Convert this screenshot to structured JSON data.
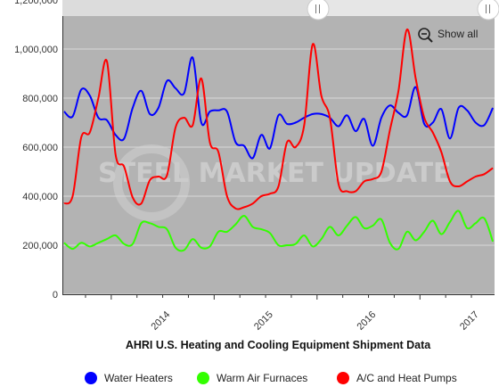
{
  "chart_data": {
    "type": "line",
    "title": "AHRI U.S. Heating and Cooling Equipment Shipment Data",
    "ylim": [
      0,
      1200000
    ],
    "y_ticks": [
      "0",
      "200,000",
      "400,000",
      "600,000",
      "800,000",
      "1,000,000",
      "1,200,000"
    ],
    "x_ticks": [
      "2014",
      "2015",
      "2016",
      "2017"
    ],
    "grid": true,
    "legend_position": "bottom",
    "show_all_label": "Show all",
    "watermark": "STEEL MARKET UPDATE",
    "x": [
      "2013-07",
      "2013-08",
      "2013-09",
      "2013-10",
      "2013-11",
      "2013-12",
      "2014-01",
      "2014-02",
      "2014-03",
      "2014-04",
      "2014-05",
      "2014-06",
      "2014-07",
      "2014-08",
      "2014-09",
      "2014-10",
      "2014-11",
      "2014-12",
      "2015-01",
      "2015-02",
      "2015-03",
      "2015-04",
      "2015-05",
      "2015-06",
      "2015-07",
      "2015-08",
      "2015-09",
      "2015-10",
      "2015-11",
      "2015-12",
      "2016-01",
      "2016-02",
      "2016-03",
      "2016-04",
      "2016-05",
      "2016-06",
      "2016-07",
      "2016-08",
      "2016-09",
      "2016-10",
      "2016-11",
      "2016-12",
      "2017-01",
      "2017-02",
      "2017-03",
      "2017-04",
      "2017-05",
      "2017-06",
      "2017-07",
      "2017-08",
      "2017-09"
    ],
    "series": [
      {
        "name": "Water Heaters",
        "color": "#0000ff",
        "values": [
          745000,
          725000,
          835000,
          810000,
          720000,
          710000,
          650000,
          635000,
          760000,
          830000,
          735000,
          760000,
          870000,
          840000,
          820000,
          965000,
          700000,
          745000,
          750000,
          745000,
          620000,
          605000,
          555000,
          650000,
          595000,
          730000,
          695000,
          700000,
          720000,
          735000,
          735000,
          720000,
          685000,
          730000,
          665000,
          715000,
          605000,
          720000,
          770000,
          740000,
          730000,
          845000,
          695000,
          700000,
          755000,
          635000,
          760000,
          750000,
          700000,
          690000,
          760000
        ]
      },
      {
        "name": "Warm Air Furnaces",
        "color": "#33ff00",
        "values": [
          210000,
          185000,
          210000,
          195000,
          210000,
          225000,
          240000,
          205000,
          205000,
          290000,
          290000,
          275000,
          265000,
          190000,
          180000,
          225000,
          190000,
          195000,
          255000,
          255000,
          285000,
          320000,
          275000,
          265000,
          250000,
          200000,
          200000,
          205000,
          240000,
          195000,
          225000,
          275000,
          240000,
          280000,
          315000,
          270000,
          280000,
          305000,
          210000,
          185000,
          255000,
          220000,
          255000,
          300000,
          245000,
          295000,
          340000,
          270000,
          290000,
          310000,
          215000
        ]
      },
      {
        "name": "A/C and Heat Pumps",
        "color": "#ff0000",
        "values": [
          370000,
          400000,
          640000,
          660000,
          800000,
          950000,
          570000,
          520000,
          395000,
          370000,
          465000,
          480000,
          485000,
          680000,
          720000,
          690000,
          880000,
          620000,
          580000,
          400000,
          350000,
          355000,
          370000,
          400000,
          410000,
          440000,
          620000,
          600000,
          690000,
          1020000,
          810000,
          720000,
          450000,
          420000,
          420000,
          460000,
          470000,
          500000,
          670000,
          830000,
          1080000,
          880000,
          720000,
          660000,
          580000,
          460000,
          440000,
          460000,
          480000,
          490000,
          515000
        ]
      }
    ]
  }
}
